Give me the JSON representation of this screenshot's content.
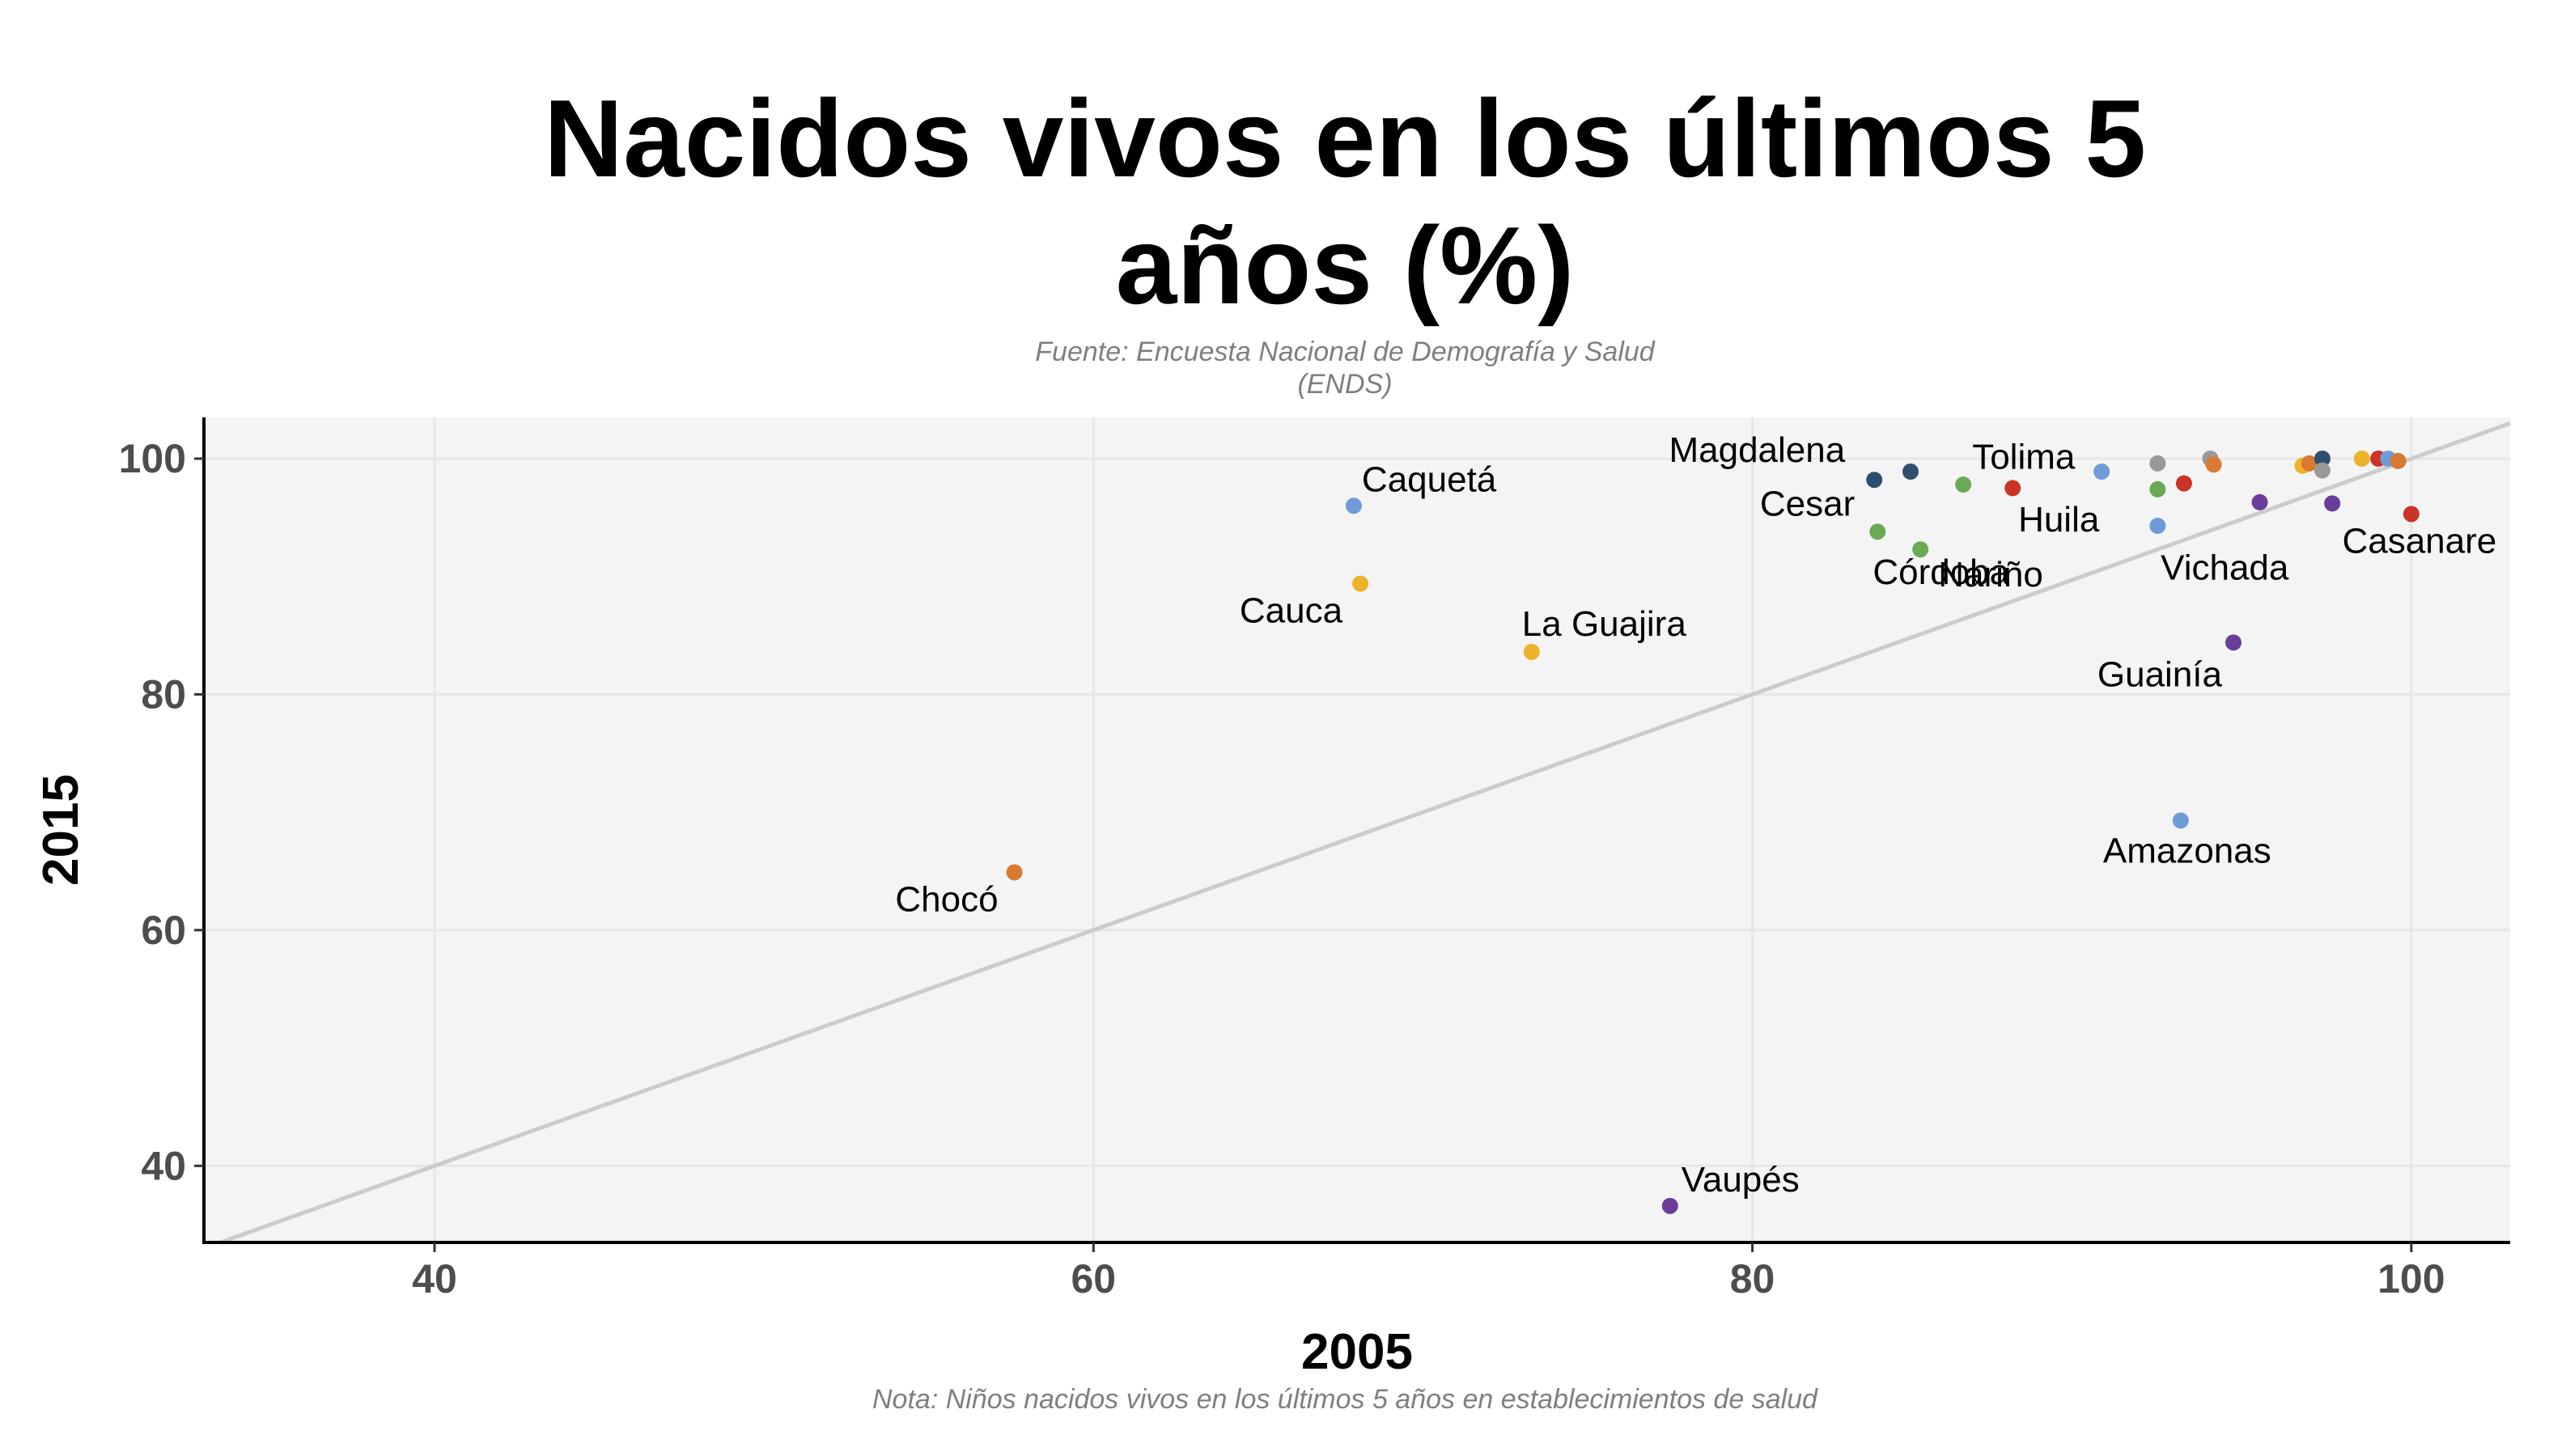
{
  "chart_data": {
    "type": "scatter",
    "title_lines": [
      "Nacidos vivos en los últimos 5",
      "años (%)"
    ],
    "subtitle_lines": [
      "Fuente: Encuesta Nacional de Demografía y Salud",
      "(ENDS)"
    ],
    "xlabel": "2005",
    "ylabel": "2015",
    "caption": "Nota: Niños nacidos vivos en los últimos 5 años en establecimientos de salud",
    "xlim": [
      33,
      103
    ],
    "ylim": [
      33.5,
      103.5
    ],
    "x_ticks": [
      40,
      60,
      80,
      100
    ],
    "y_ticks": [
      40,
      60,
      80,
      100
    ],
    "reference_line": "y = x",
    "grid": true,
    "legend": "none",
    "colors": {
      "panel_background": "#f4f4f4",
      "grid": "#e6e6e6",
      "reference_line": "#cccccc",
      "blue": "#6f9bd8",
      "orange": "#d87a30",
      "yellow": "#ecb32a",
      "green": "#6aaa55",
      "navy": "#2f4d6e",
      "red": "#cc3328",
      "purple": "#6a3d9a",
      "gray": "#999999"
    },
    "points": [
      {
        "x": 67.9,
        "y": 96.0,
        "color": "blue",
        "label": "Caquetá"
      },
      {
        "x": 68.1,
        "y": 89.4,
        "color": "yellow",
        "label": "Cauca"
      },
      {
        "x": 73.3,
        "y": 83.6,
        "color": "yellow",
        "label": "La Guajira"
      },
      {
        "x": 57.6,
        "y": 64.9,
        "color": "orange",
        "label": "Chocó"
      },
      {
        "x": 77.5,
        "y": 36.6,
        "color": "purple",
        "label": "Vaupés"
      },
      {
        "x": 83.7,
        "y": 98.2,
        "color": "navy",
        "label": "Magdalena"
      },
      {
        "x": 84.8,
        "y": 98.9,
        "color": "navy"
      },
      {
        "x": 86.4,
        "y": 97.8,
        "color": "green"
      },
      {
        "x": 83.8,
        "y": 93.8,
        "color": "green",
        "label": "Cesar"
      },
      {
        "x": 85.1,
        "y": 92.3,
        "color": "green",
        "label": "Nariño"
      },
      {
        "x": 87.9,
        "y": 97.5,
        "color": "red",
        "label": "Tolima"
      },
      {
        "x": 90.6,
        "y": 98.9,
        "color": "blue"
      },
      {
        "x": 92.3,
        "y": 99.6,
        "color": "gray"
      },
      {
        "x": 92.3,
        "y": 97.4,
        "color": "green",
        "label": "Huila"
      },
      {
        "x": 93.1,
        "y": 97.9,
        "color": "red"
      },
      {
        "x": 92.3,
        "y": 94.3,
        "color": "blue",
        "label": "Córdoba"
      },
      {
        "x": 93.9,
        "y": 100.0,
        "color": "gray"
      },
      {
        "x": 94.0,
        "y": 99.5,
        "color": "orange"
      },
      {
        "x": 95.4,
        "y": 96.3,
        "color": "purple"
      },
      {
        "x": 94.6,
        "y": 84.4,
        "color": "purple",
        "label": "Guainía"
      },
      {
        "x": 93.0,
        "y": 69.3,
        "color": "blue",
        "label": "Amazonas"
      },
      {
        "x": 96.7,
        "y": 99.4,
        "color": "yellow"
      },
      {
        "x": 96.9,
        "y": 99.6,
        "color": "orange"
      },
      {
        "x": 97.3,
        "y": 100.0,
        "color": "navy"
      },
      {
        "x": 97.3,
        "y": 99.0,
        "color": "gray"
      },
      {
        "x": 97.6,
        "y": 96.2,
        "color": "purple",
        "label": "Vichada"
      },
      {
        "x": 98.5,
        "y": 100.0,
        "color": "yellow"
      },
      {
        "x": 99.0,
        "y": 100.0,
        "color": "red"
      },
      {
        "x": 99.3,
        "y": 100.0,
        "color": "blue"
      },
      {
        "x": 99.6,
        "y": 99.8,
        "color": "orange"
      },
      {
        "x": 100.0,
        "y": 95.3,
        "color": "red",
        "label": "Casanare"
      }
    ]
  }
}
